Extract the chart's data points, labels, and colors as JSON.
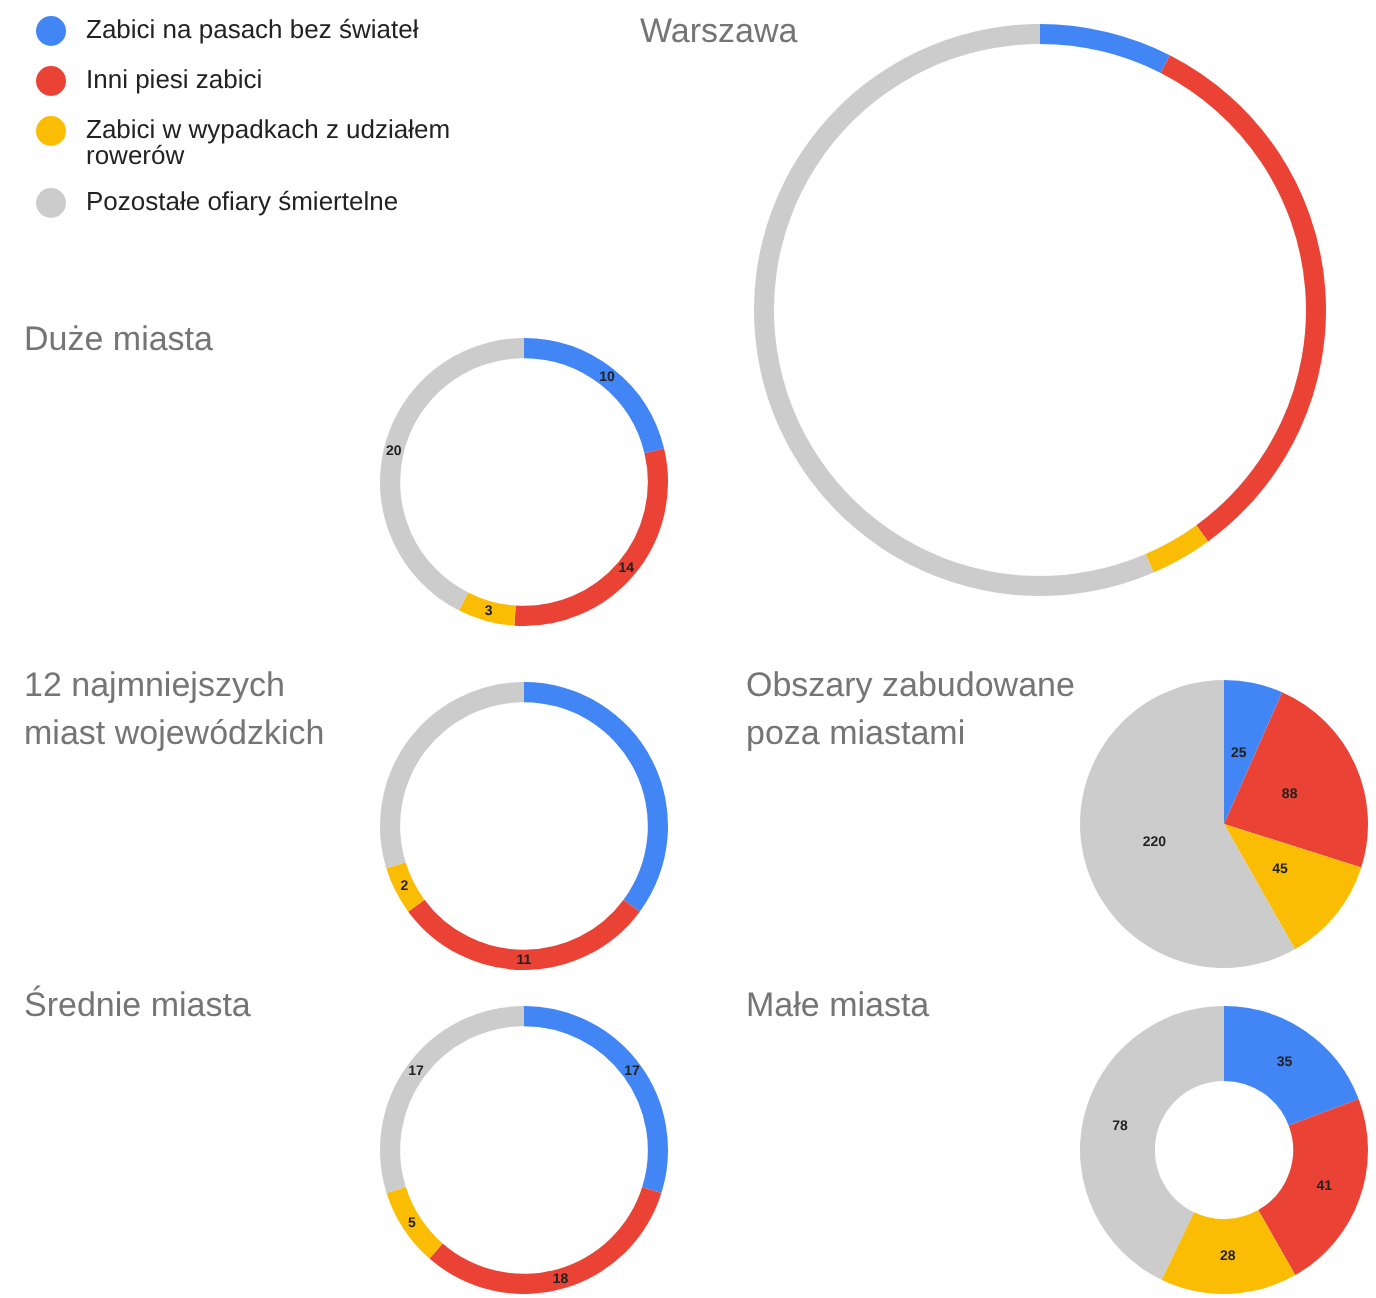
{
  "chart_data": [
    {
      "type": "donut",
      "title": "Warszawa",
      "categories": [
        "Zabici na pasach bez świateł",
        "Inni piesi zabici",
        "Zabici w wypadkach z udziałem rowerów",
        "Pozostałe ofiary śmiertelne"
      ],
      "values": [
        7.5,
        32.5,
        3.5,
        56.5
      ],
      "colors": [
        "#4285f4",
        "#ea4335",
        "#fbbc04",
        "#cccccc"
      ],
      "legend": "left"
    },
    {
      "type": "donut",
      "title": "Duże miasta",
      "categories": [
        null,
        null,
        null,
        null
      ],
      "values": [
        10,
        14,
        3,
        20
      ],
      "colors": [
        "#4285f4",
        "#ea4335",
        "#fbbc04",
        "#cccccc"
      ],
      "data_labels": true
    },
    {
      "type": "donut",
      "title": "12 najmniejszych miast wojewódzkich",
      "categories": [
        null,
        null,
        null,
        null
      ],
      "values": [
        13,
        11,
        2,
        11
      ],
      "value_labels": [
        null,
        "11",
        "2",
        null
      ],
      "colors": [
        "#4285f4",
        "#ea4335",
        "#fbbc04",
        "#cccccc"
      ]
    },
    {
      "type": "pie",
      "title": "Obszary zabudowane poza miastami",
      "categories": [
        null,
        null,
        null,
        null
      ],
      "values": [
        25,
        88,
        45,
        220
      ],
      "colors": [
        "#4285f4",
        "#ea4335",
        "#fbbc04",
        "#cccccc"
      ],
      "data_labels": true
    },
    {
      "type": "donut",
      "title": "Średnie miasta",
      "categories": [
        null,
        null,
        null,
        null
      ],
      "values": [
        17,
        18,
        5,
        17
      ],
      "colors": [
        "#4285f4",
        "#ea4335",
        "#fbbc04",
        "#cccccc"
      ],
      "data_labels": true
    },
    {
      "type": "donut",
      "title": "Małe miasta",
      "categories": [
        null,
        null,
        null,
        null
      ],
      "values": [
        35,
        41,
        28,
        78
      ],
      "colors": [
        "#4285f4",
        "#ea4335",
        "#fbbc04",
        "#cccccc"
      ],
      "data_labels": true
    }
  ]
}
